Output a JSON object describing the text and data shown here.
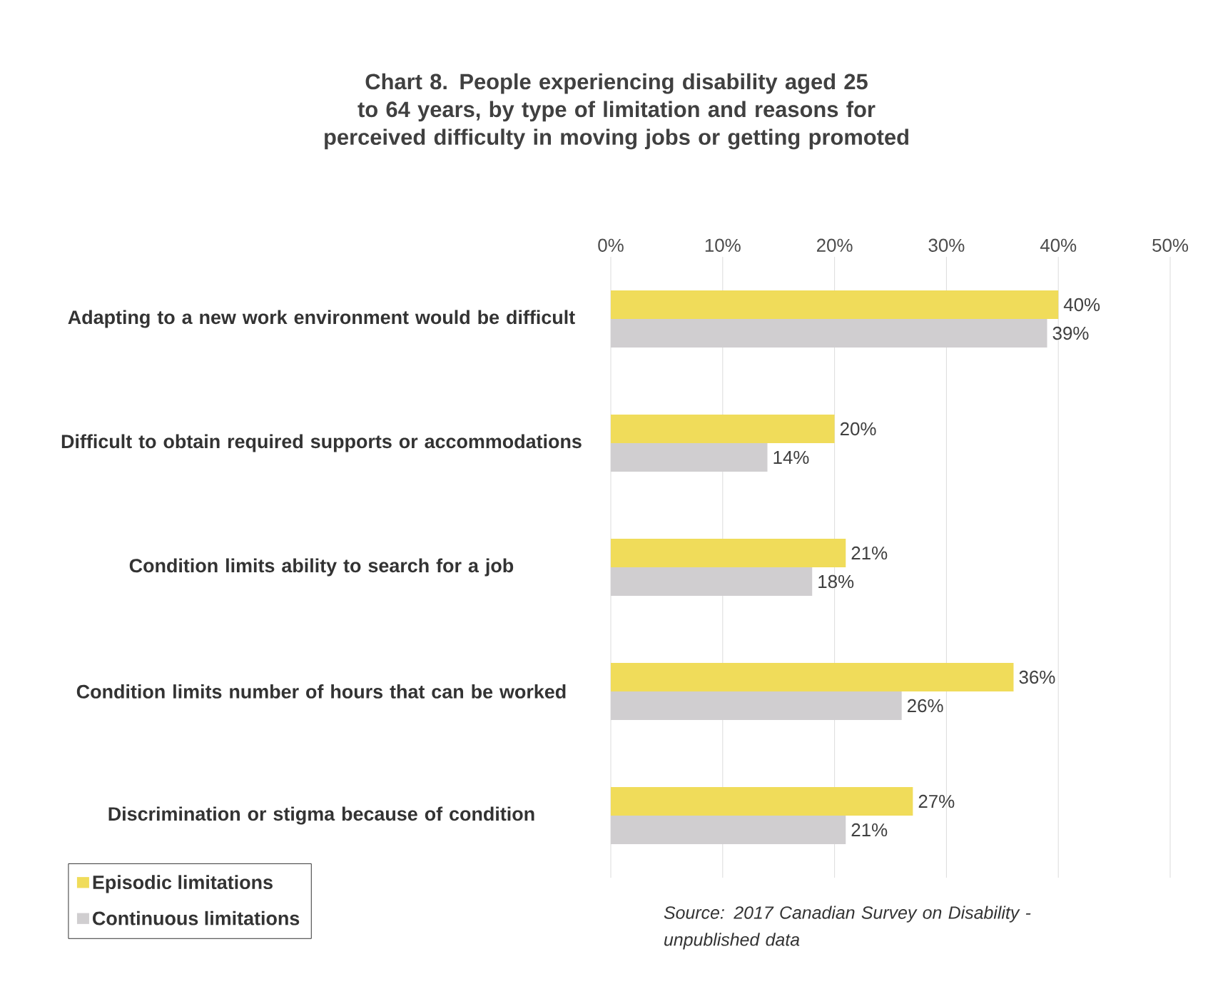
{
  "chart_data": {
    "type": "bar",
    "orientation": "horizontal",
    "title": "Chart 8. People experiencing disability aged 25 to 64 years, by type of limitation and reasons for perceived difficulty in moving jobs or getting promoted",
    "categories": [
      "Adapting to a new work environment would be difficult",
      "Difficult to obtain required supports or accommodations",
      "Condition limits ability to search for a job",
      "Condition limits number of hours that can be worked",
      "Discrimination or stigma because of condition"
    ],
    "series": [
      {
        "name": "Episodic limitations",
        "color": "#f0dc5a",
        "values": [
          40,
          20,
          21,
          36,
          27
        ],
        "value_labels": [
          "40%",
          "20%",
          "21%",
          "36%",
          "27%"
        ]
      },
      {
        "name": "Continuous limitations",
        "color": "#d0ced0",
        "values": [
          39,
          14,
          18,
          26,
          21
        ],
        "value_labels": [
          "39%",
          "14%",
          "18%",
          "26%",
          "21%"
        ]
      }
    ],
    "xlim": [
      0,
      50
    ],
    "xticks": [
      {
        "value": 0,
        "label": "0%"
      },
      {
        "value": 10,
        "label": "10%"
      },
      {
        "value": 20,
        "label": "20%"
      },
      {
        "value": 30,
        "label": "30%"
      },
      {
        "value": 40,
        "label": "40%"
      },
      {
        "value": 50,
        "label": "50%"
      }
    ],
    "grid": "x",
    "legend": "bottom left",
    "annotations": [
      "Source: 2017 Canadian Survey on Disability - unpublished data"
    ]
  }
}
